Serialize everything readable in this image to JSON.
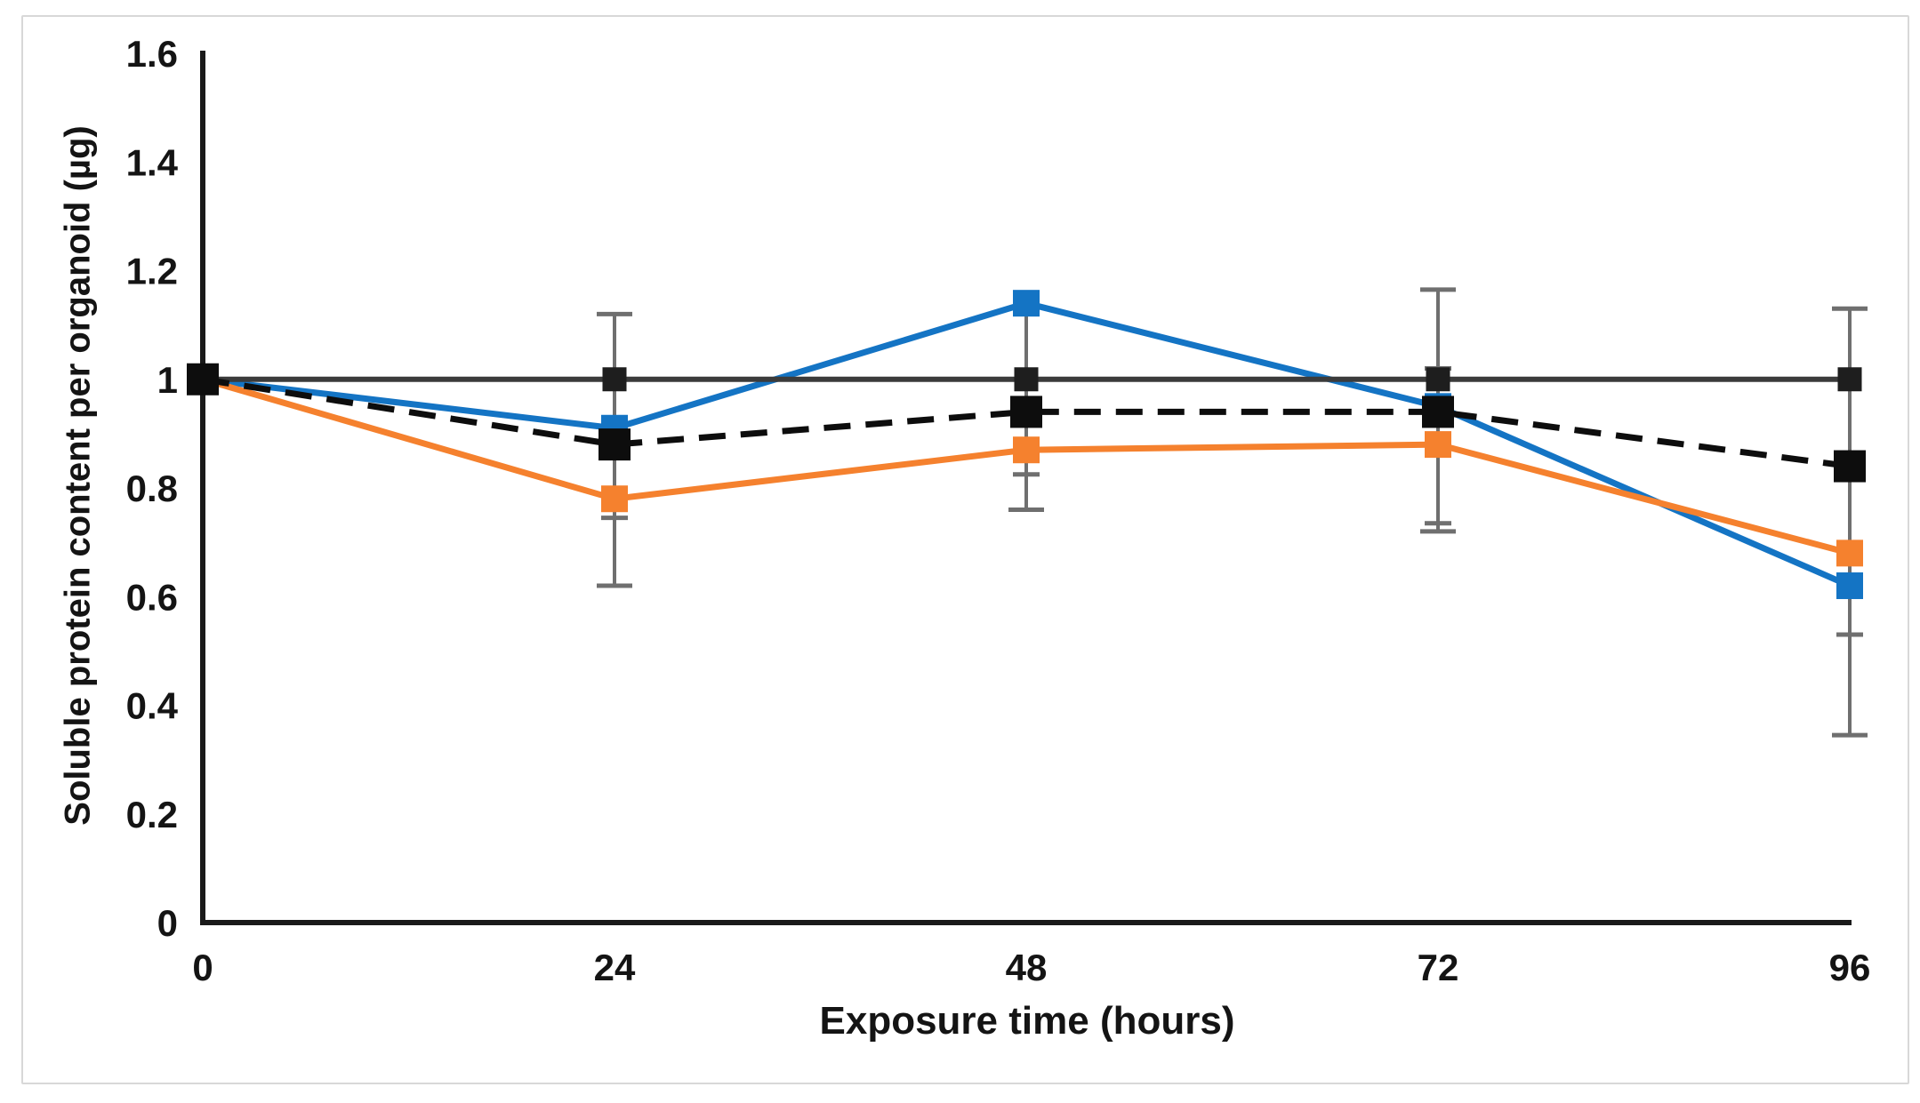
{
  "figure": {
    "background": "#ffffff",
    "border_color": "#d8d8d8"
  },
  "chart_data": {
    "type": "line",
    "title": "",
    "xlabel": "Exposure time (hours)",
    "ylabel": "Soluble protein content per organoid (µg)",
    "x": [
      0,
      24,
      48,
      72,
      96
    ],
    "xticks": [
      0,
      24,
      48,
      72,
      96
    ],
    "yticks": [
      0,
      0.2,
      0.4,
      0.6,
      0.8,
      1,
      1.2,
      1.4,
      1.6
    ],
    "xlim": [
      0,
      96
    ],
    "ylim": [
      0,
      1.6
    ],
    "grid": false,
    "legend": "none",
    "axis_color": "#1a1a1a",
    "error_bar_color": "#6f6f6f",
    "series": [
      {
        "name": "blue",
        "color": "#1474c4",
        "marker_color": "#1474c4",
        "marker": "square",
        "marker_size": 30,
        "line_width": 7,
        "dash": null,
        "values": [
          1.0,
          0.91,
          1.14,
          0.95,
          0.62
        ]
      },
      {
        "name": "orange",
        "color": "#f5812e",
        "marker_color": "#f5812e",
        "marker": "square",
        "marker_size": 30,
        "line_width": 7,
        "dash": null,
        "values": [
          1.0,
          0.78,
          0.87,
          0.88,
          0.68
        ]
      },
      {
        "name": "solid-black-reference",
        "color": "#3b3b3b",
        "marker_color": "#1e1e1e",
        "marker": "square",
        "marker_size": 27,
        "line_width": 6,
        "dash": null,
        "values": [
          1.0,
          1.0,
          1.0,
          1.0,
          1.0
        ]
      },
      {
        "name": "dashed-black",
        "color": "#0d0d0d",
        "marker_color": "#0d0d0d",
        "marker": "square",
        "marker_size": 36,
        "line_width": 7,
        "dash": [
          30,
          17
        ],
        "values": [
          1.0,
          0.88,
          0.94,
          0.94,
          0.84
        ]
      }
    ],
    "error_bars": [
      {
        "x": 24,
        "high": 1.12,
        "low": 0.62,
        "caps": [
          {
            "v": 1.12,
            "w": 20
          },
          {
            "v": 0.8,
            "w": 15
          },
          {
            "v": 0.745,
            "w": 15
          },
          {
            "v": 0.62,
            "w": 20
          }
        ]
      },
      {
        "x": 48,
        "high": 1.14,
        "low": 0.76,
        "caps": [
          {
            "v": 0.825,
            "w": 15
          },
          {
            "v": 0.76,
            "w": 20
          }
        ]
      },
      {
        "x": 72,
        "high": 1.165,
        "low": 0.72,
        "caps": [
          {
            "v": 1.165,
            "w": 20
          },
          {
            "v": 1.02,
            "w": 15
          },
          {
            "v": 0.735,
            "w": 15
          },
          {
            "v": 0.72,
            "w": 20
          }
        ]
      },
      {
        "x": 96,
        "high": 1.13,
        "low": 0.345,
        "caps": [
          {
            "v": 1.13,
            "w": 20
          },
          {
            "v": 0.53,
            "w": 15
          },
          {
            "v": 0.345,
            "w": 20
          }
        ]
      }
    ]
  }
}
